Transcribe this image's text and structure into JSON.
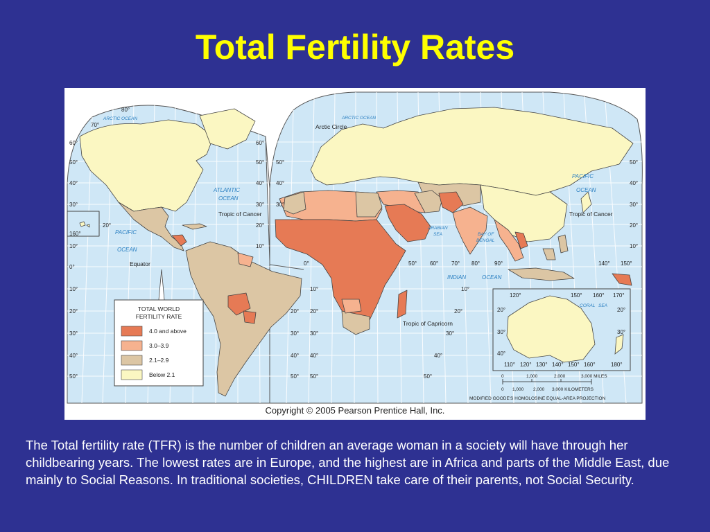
{
  "slide": {
    "title": "Total Fertility Rates",
    "caption": "The Total fertility rate (TFR) is the number of children an average woman in a society will have through her childbearing years. The lowest rates are in Europe, and the highest are in Africa and parts of the Middle East, due mainly to Social Reasons.  In traditional societies, CHILDREN take care of their parents, not Social Security."
  },
  "map": {
    "copyright": "Copyright © 2005 Pearson Prentice Hall, Inc.",
    "projection": "MODIFIED GOODE'S HOMOLOSINE EQUAL-AREA PROJECTION",
    "colors": {
      "ocean": "#cfe7f6",
      "grid": "#ffffff",
      "border": "#444444",
      "water_label": "#2a7fc1"
    },
    "legend": {
      "title_line1": "TOTAL WORLD",
      "title_line2": "FERTILITY RATE",
      "items": [
        {
          "label": "4.0 and above",
          "color": "#e67a55"
        },
        {
          "label": "3.0–3.9",
          "color": "#f6b28f"
        },
        {
          "label": "2.1–2.9",
          "color": "#dcc6a4"
        },
        {
          "label": "Below 2.1",
          "color": "#fbf7c2"
        }
      ]
    },
    "water_labels": {
      "arctic_ocean_w": "ARCTIC OCEAN",
      "arctic_ocean_e": "ARCTIC OCEAN",
      "atlantic_1": "ATLANTIC",
      "atlantic_2": "OCEAN",
      "pacific_w_1": "PACIFIC",
      "pacific_w_2": "OCEAN",
      "pacific_e_1": "PACIFIC",
      "pacific_e_2": "OCEAN",
      "indian_1": "INDIAN",
      "indian_2": "OCEAN",
      "arabian_1": "ARABIAN",
      "arabian_2": "SEA",
      "bengal_1": "BAY OF",
      "bengal_2": "BENGAL",
      "coral_1": "CORAL",
      "coral_2": "SEA"
    },
    "line_labels": {
      "arctic_circle": "Arctic Circle",
      "tropic_cancer_w": "Tropic of Cancer",
      "tropic_cancer_e": "Tropic of Cancer",
      "equator": "Equator",
      "tropic_capricorn": "Tropic of Capricorn"
    },
    "ticks": {
      "left_lat": [
        "60°",
        "50°",
        "40°",
        "30°",
        "10°",
        "0°",
        "10°",
        "20°",
        "30°",
        "40°",
        "50°"
      ],
      "left_inset": [
        "20°",
        "160°"
      ],
      "mid_lat": [
        "60°",
        "50°",
        "40°",
        "30°",
        "20°",
        "10°"
      ],
      "mid_lat_s": [
        "20°",
        "30°",
        "40°",
        "50°"
      ],
      "top": [
        "80°",
        "70°"
      ],
      "east_lat_left": [
        "50°",
        "40°",
        "30°"
      ],
      "africa_s": [
        "10°",
        "20°",
        "30°",
        "40°",
        "50°"
      ],
      "right_lat": [
        "50°",
        "40°",
        "30°",
        "20°",
        "10°"
      ],
      "lon_row": [
        "0°",
        "50°",
        "60°",
        "70°",
        "80°",
        "90°"
      ],
      "asia_lon": [
        "140°",
        "150°"
      ],
      "io_lat": [
        "10°",
        "20°",
        "30°",
        "40°",
        "50°"
      ],
      "aus_top": [
        "120°",
        "150°",
        "160°",
        "170°"
      ],
      "aus_left": [
        "20°",
        "30°",
        "40°"
      ],
      "aus_right": [
        "20°",
        "30°"
      ],
      "aus_bottom": [
        "110°",
        "120°",
        "130°",
        "140°",
        "150°",
        "160°",
        "180°"
      ]
    },
    "scale": {
      "miles": [
        "0",
        "1,000",
        "2,000",
        "3,000 MILES"
      ],
      "km": [
        "0",
        "1,000",
        "2,000",
        "3,000 KILOMETERS"
      ]
    }
  }
}
